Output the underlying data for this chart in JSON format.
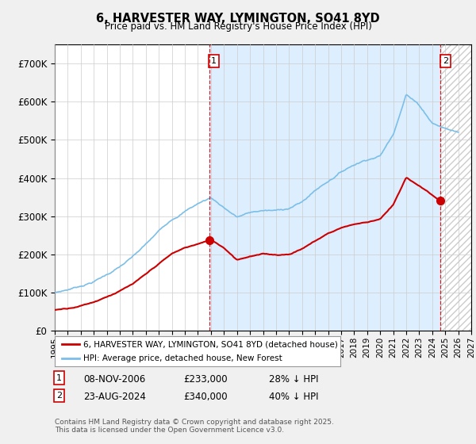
{
  "title": "6, HARVESTER WAY, LYMINGTON, SO41 8YD",
  "subtitle": "Price paid vs. HM Land Registry's House Price Index (HPI)",
  "ylim": [
    0,
    750000
  ],
  "xlim_year": [
    1995.0,
    2027.0
  ],
  "yticks": [
    0,
    100000,
    200000,
    300000,
    400000,
    500000,
    600000,
    700000
  ],
  "ytick_labels": [
    "£0",
    "£100K",
    "£200K",
    "£300K",
    "£400K",
    "£500K",
    "£600K",
    "£700K"
  ],
  "hpi_color": "#7bbfe8",
  "price_color": "#cc0000",
  "purchase1_year": 2006.86,
  "purchase1_price": 233000,
  "purchase2_year": 2024.64,
  "purchase2_price": 340000,
  "legend_line1": "6, HARVESTER WAY, LYMINGTON, SO41 8YD (detached house)",
  "legend_line2": "HPI: Average price, detached house, New Forest",
  "transaction1_date": "08-NOV-2006",
  "transaction1_price": "£233,000",
  "transaction1_hpi": "28% ↓ HPI",
  "transaction2_date": "23-AUG-2024",
  "transaction2_price": "£340,000",
  "transaction2_hpi": "40% ↓ HPI",
  "footer": "Contains HM Land Registry data © Crown copyright and database right 2025.\nThis data is licensed under the Open Government Licence v3.0.",
  "background_color": "#f0f0f0",
  "plot_bg_color": "#ffffff",
  "shaded_bg_color": "#ddeeff",
  "grid_color": "#cccccc",
  "hpi_data_years": [
    1995,
    1996,
    1997,
    1998,
    1999,
    2000,
    2001,
    2002,
    2003,
    2004,
    2005,
    2006,
    2007,
    2008,
    2009,
    2010,
    2011,
    2012,
    2013,
    2014,
    2015,
    2016,
    2017,
    2018,
    2019,
    2020,
    2021,
    2022,
    2023,
    2024,
    2025,
    2026
  ],
  "hpi_data_vals": [
    100000,
    108000,
    118000,
    130000,
    148000,
    168000,
    192000,
    222000,
    255000,
    288000,
    310000,
    330000,
    345000,
    320000,
    295000,
    305000,
    310000,
    308000,
    315000,
    330000,
    360000,
    385000,
    410000,
    430000,
    445000,
    455000,
    510000,
    620000,
    590000,
    545000,
    530000,
    520000
  ],
  "price_data_years": [
    1995,
    1996,
    1997,
    1998,
    1999,
    2000,
    2001,
    2002,
    2003,
    2004,
    2005,
    2006,
    2006.86,
    2007,
    2008,
    2009,
    2010,
    2011,
    2012,
    2013,
    2014,
    2015,
    2016,
    2017,
    2018,
    2019,
    2020,
    2021,
    2022,
    2023,
    2024.64
  ],
  "price_data_vals": [
    55000,
    60000,
    68000,
    78000,
    93000,
    108000,
    125000,
    148000,
    175000,
    200000,
    215000,
    225000,
    233000,
    235000,
    215000,
    185000,
    195000,
    200000,
    198000,
    200000,
    215000,
    235000,
    255000,
    270000,
    280000,
    285000,
    295000,
    330000,
    400000,
    380000,
    340000
  ]
}
